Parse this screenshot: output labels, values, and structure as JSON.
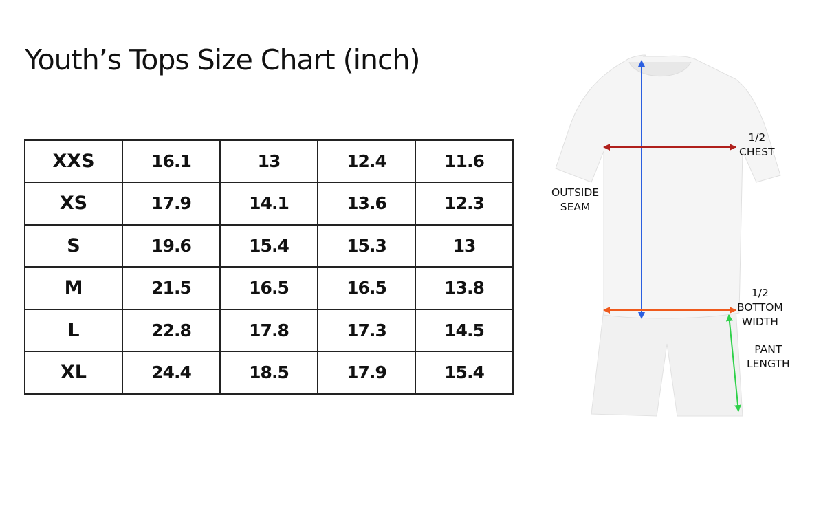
{
  "title": "Youth’s Tops Size Chart (inch)",
  "table": {
    "rows": [
      {
        "size": "XXS",
        "values": [
          "16.1",
          "13",
          "12.4",
          "11.6"
        ]
      },
      {
        "size": "XS",
        "values": [
          "17.9",
          "14.1",
          "13.6",
          "12.3"
        ]
      },
      {
        "size": "S",
        "values": [
          "19.6",
          "15.4",
          "15.3",
          "13"
        ]
      },
      {
        "size": "M",
        "values": [
          "21.5",
          "16.5",
          "16.5",
          "13.8"
        ]
      },
      {
        "size": "L",
        "values": [
          "22.8",
          "17.8",
          "17.3",
          "14.5"
        ]
      },
      {
        "size": "XL",
        "values": [
          "24.4",
          "18.5",
          "17.9",
          "15.4"
        ]
      }
    ]
  },
  "diagram": {
    "labels": {
      "chest": [
        "1/2",
        "CHEST"
      ],
      "outside_seam": [
        "OUTSIDE",
        "SEAM"
      ],
      "bottom_width": [
        "1/2",
        "BOTTOM",
        "WIDTH"
      ],
      "pant_length": [
        "PANT",
        "LENGTH"
      ]
    },
    "colors": {
      "outside_seam": "#2b5fe0",
      "chest": "#b0201c",
      "bottom_width": "#ef5a1c",
      "pant_length": "#2fd14a"
    }
  }
}
